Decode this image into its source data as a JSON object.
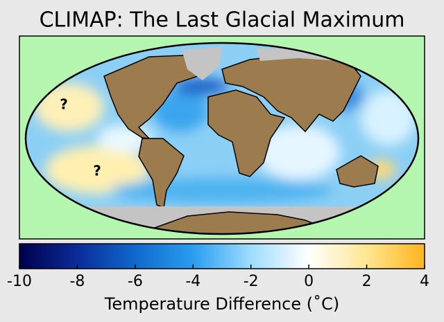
{
  "title": "CLIMAP: The Last Glacial Maximum",
  "annotations": [
    "?",
    "?"
  ],
  "colorbar": {
    "label": "Temperature Difference (˚C)",
    "lim": [
      -10,
      4
    ],
    "ticks": [
      -10,
      -8,
      -6,
      -4,
      -2,
      0,
      2,
      4
    ],
    "colors": [
      "#00004a",
      "#0a2c9a",
      "#1068cc",
      "#2a9ef0",
      "#9edcff",
      "#ffffff",
      "#ffe690",
      "#ffb41e"
    ]
  }
}
